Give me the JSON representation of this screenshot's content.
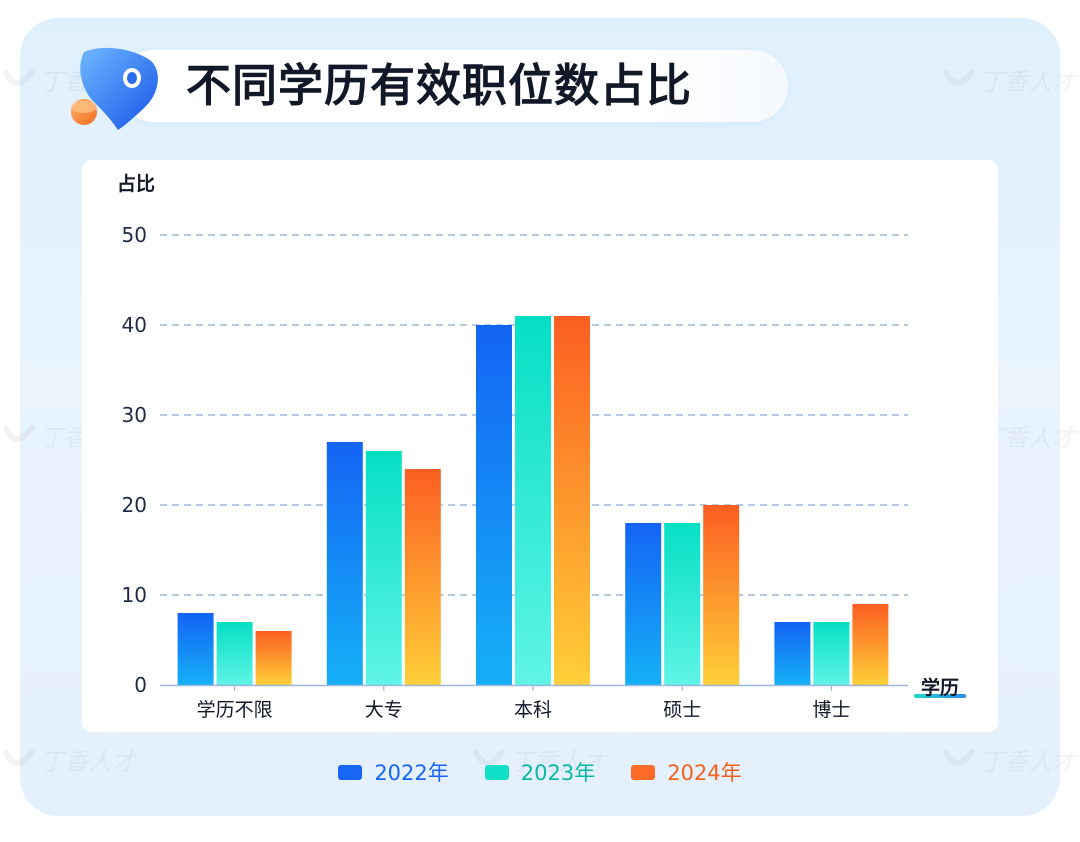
{
  "title": "不同学历有效职位数占比",
  "watermark": "丁香人才",
  "chart_data": {
    "type": "bar",
    "title": "不同学历有效职位数占比",
    "ylabel": "占比",
    "xlabel": "学历",
    "ylim": [
      0,
      50
    ],
    "yticks": [
      "0",
      "10",
      "20",
      "30",
      "40",
      "50"
    ],
    "categories": [
      "学历不限",
      "大专",
      "本科",
      "硕士",
      "博士"
    ],
    "series": [
      {
        "name": "2022年",
        "values": [
          8,
          27,
          40,
          18,
          7
        ],
        "color": "#1766f5",
        "label_color": "#1766f5"
      },
      {
        "name": "2023年",
        "values": [
          7,
          26,
          41,
          18,
          7
        ],
        "color": "#12e0c6",
        "label_color": "#0bb8a6"
      },
      {
        "name": "2024年",
        "values": [
          6,
          24,
          41,
          20,
          9
        ],
        "color": "#fb6a26",
        "label_color": "#f2621e"
      }
    ],
    "grid": true,
    "legend_position": "bottom"
  }
}
